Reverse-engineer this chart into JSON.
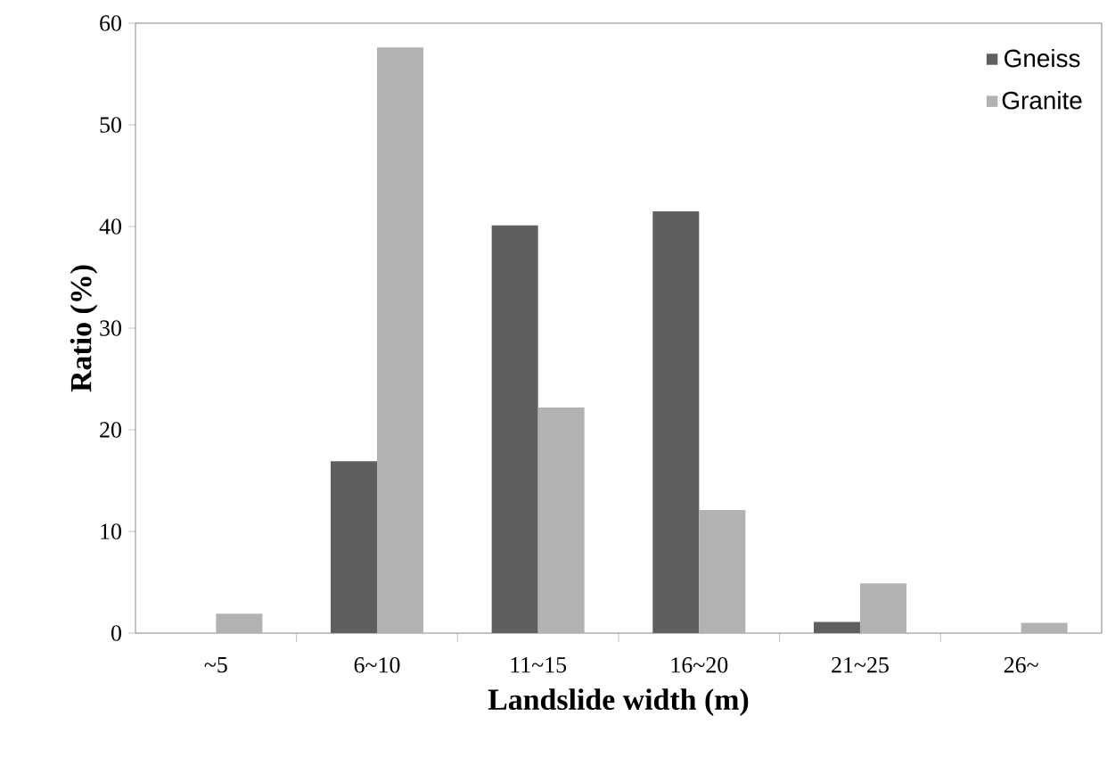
{
  "chart_data": {
    "type": "bar",
    "xlabel": "Landslide width (m)",
    "ylabel": "Ratio (%)",
    "categories": [
      "~5",
      "6~10",
      "11~15",
      "16~20",
      "21~25",
      "26~"
    ],
    "series": [
      {
        "name": "Gneiss",
        "color": "#5f5f5f",
        "values": [
          0,
          16.9,
          40.1,
          41.5,
          1.1,
          0
        ]
      },
      {
        "name": "Granite",
        "color": "#b2b2b2",
        "values": [
          1.9,
          57.6,
          22.2,
          12.1,
          4.9,
          1.0
        ]
      }
    ],
    "ylim": [
      0,
      60
    ],
    "yticks": [
      0,
      10,
      20,
      30,
      40,
      50,
      60
    ],
    "grid": false,
    "legend": "top right"
  }
}
